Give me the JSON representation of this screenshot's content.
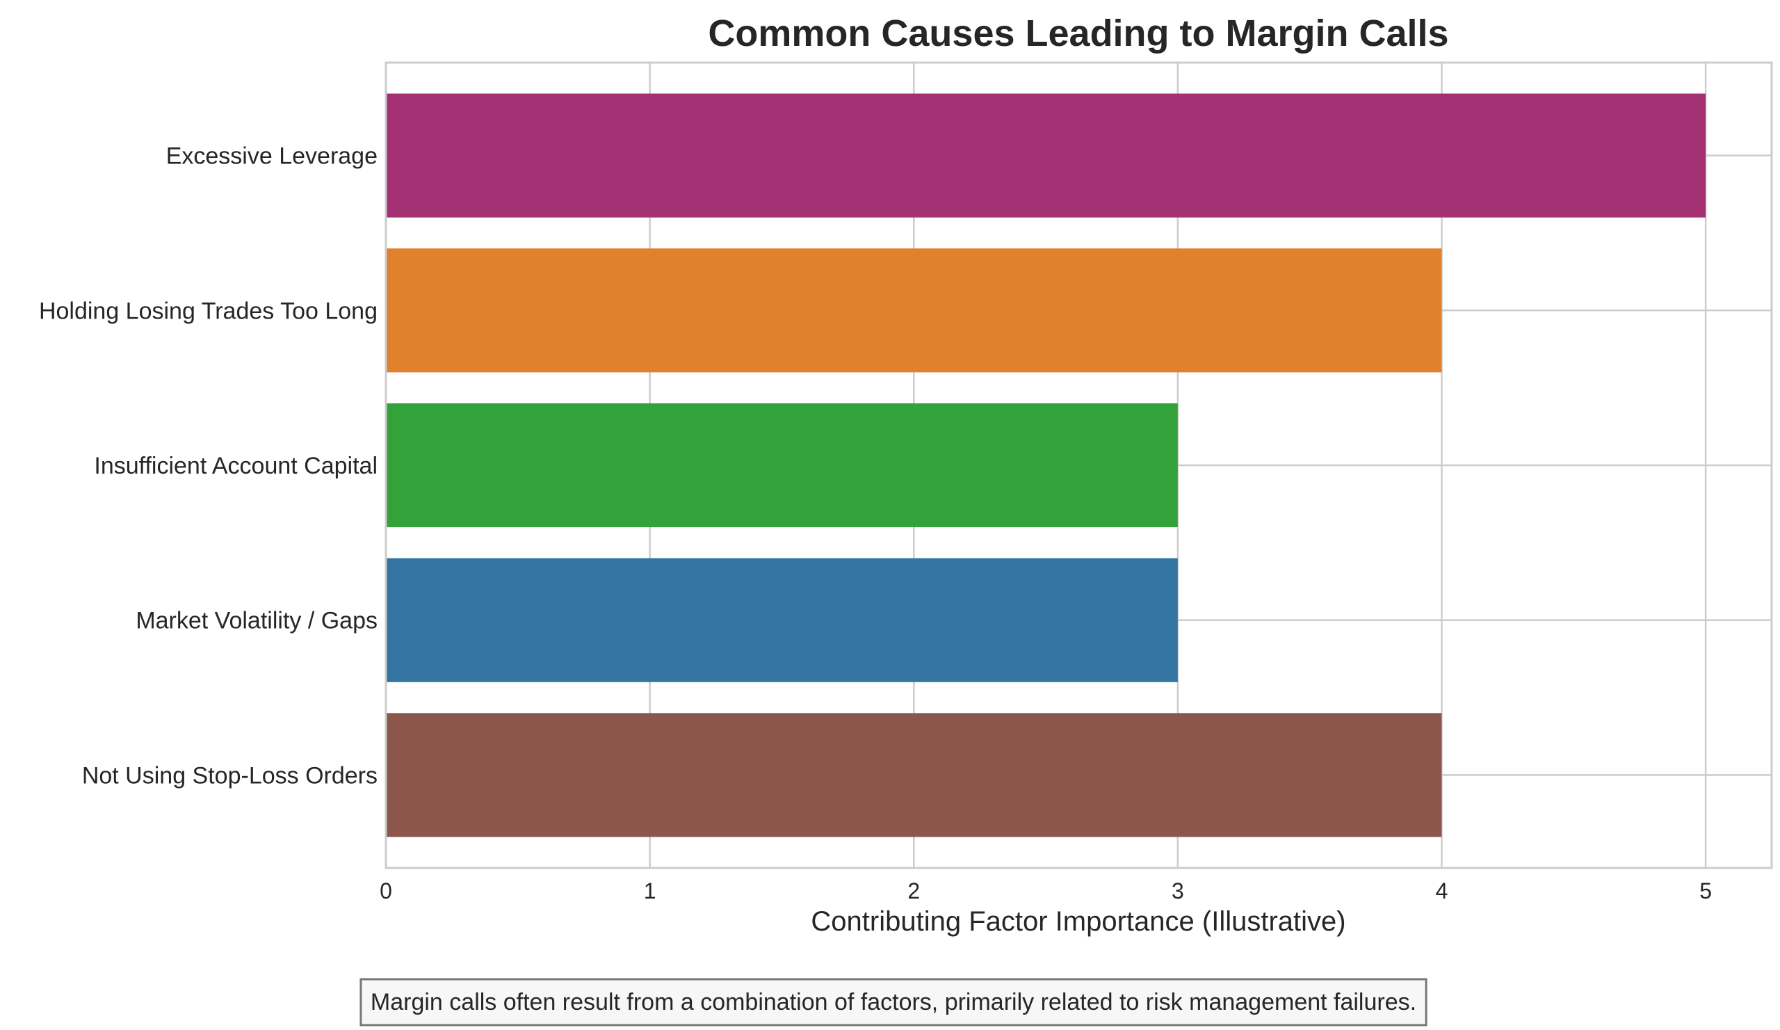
{
  "chart_data": {
    "type": "bar",
    "orientation": "horizontal",
    "title": "Common Causes Leading to Margin Calls",
    "xlabel": "Contributing Factor Importance (Illustrative)",
    "ylabel": "",
    "xlim": [
      0,
      5.25
    ],
    "xticks": [
      "0",
      "1",
      "2",
      "3",
      "4",
      "5"
    ],
    "grid": true,
    "categories": [
      "Excessive Leverage",
      "Holding Losing Trades Too Long",
      "Insufficient Account Capital",
      "Market Volatility / Gaps",
      "Not Using Stop-Loss Orders"
    ],
    "values": [
      5,
      4,
      3,
      3,
      4
    ],
    "colors": [
      "#a23072",
      "#e0812e",
      "#34a23b",
      "#3374a2",
      "#8b574c"
    ],
    "annotation": "Margin calls often result from a combination of factors, primarily related to risk management failures."
  }
}
